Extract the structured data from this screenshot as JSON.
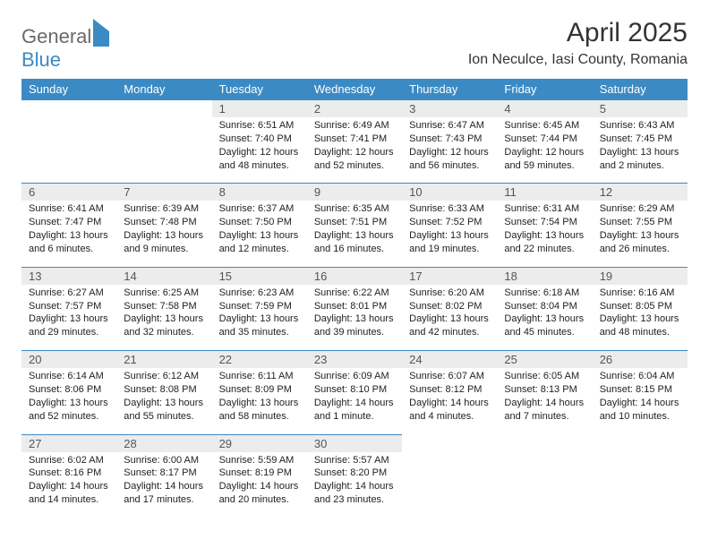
{
  "brand": {
    "word1": "General",
    "word2": "Blue"
  },
  "title": "April 2025",
  "location": "Ion Neculce, Iasi County, Romania",
  "header_bg": "#3b8ac4",
  "daynum_bg": "#ececec",
  "text_color": "#333333",
  "cell_fontsize": 11,
  "day_names": [
    "Sunday",
    "Monday",
    "Tuesday",
    "Wednesday",
    "Thursday",
    "Friday",
    "Saturday"
  ],
  "weeks": [
    [
      null,
      null,
      {
        "n": "1",
        "sr": "Sunrise: 6:51 AM",
        "ss": "Sunset: 7:40 PM",
        "dl": "Daylight: 12 hours and 48 minutes."
      },
      {
        "n": "2",
        "sr": "Sunrise: 6:49 AM",
        "ss": "Sunset: 7:41 PM",
        "dl": "Daylight: 12 hours and 52 minutes."
      },
      {
        "n": "3",
        "sr": "Sunrise: 6:47 AM",
        "ss": "Sunset: 7:43 PM",
        "dl": "Daylight: 12 hours and 56 minutes."
      },
      {
        "n": "4",
        "sr": "Sunrise: 6:45 AM",
        "ss": "Sunset: 7:44 PM",
        "dl": "Daylight: 12 hours and 59 minutes."
      },
      {
        "n": "5",
        "sr": "Sunrise: 6:43 AM",
        "ss": "Sunset: 7:45 PM",
        "dl": "Daylight: 13 hours and 2 minutes."
      }
    ],
    [
      {
        "n": "6",
        "sr": "Sunrise: 6:41 AM",
        "ss": "Sunset: 7:47 PM",
        "dl": "Daylight: 13 hours and 6 minutes."
      },
      {
        "n": "7",
        "sr": "Sunrise: 6:39 AM",
        "ss": "Sunset: 7:48 PM",
        "dl": "Daylight: 13 hours and 9 minutes."
      },
      {
        "n": "8",
        "sr": "Sunrise: 6:37 AM",
        "ss": "Sunset: 7:50 PM",
        "dl": "Daylight: 13 hours and 12 minutes."
      },
      {
        "n": "9",
        "sr": "Sunrise: 6:35 AM",
        "ss": "Sunset: 7:51 PM",
        "dl": "Daylight: 13 hours and 16 minutes."
      },
      {
        "n": "10",
        "sr": "Sunrise: 6:33 AM",
        "ss": "Sunset: 7:52 PM",
        "dl": "Daylight: 13 hours and 19 minutes."
      },
      {
        "n": "11",
        "sr": "Sunrise: 6:31 AM",
        "ss": "Sunset: 7:54 PM",
        "dl": "Daylight: 13 hours and 22 minutes."
      },
      {
        "n": "12",
        "sr": "Sunrise: 6:29 AM",
        "ss": "Sunset: 7:55 PM",
        "dl": "Daylight: 13 hours and 26 minutes."
      }
    ],
    [
      {
        "n": "13",
        "sr": "Sunrise: 6:27 AM",
        "ss": "Sunset: 7:57 PM",
        "dl": "Daylight: 13 hours and 29 minutes."
      },
      {
        "n": "14",
        "sr": "Sunrise: 6:25 AM",
        "ss": "Sunset: 7:58 PM",
        "dl": "Daylight: 13 hours and 32 minutes."
      },
      {
        "n": "15",
        "sr": "Sunrise: 6:23 AM",
        "ss": "Sunset: 7:59 PM",
        "dl": "Daylight: 13 hours and 35 minutes."
      },
      {
        "n": "16",
        "sr": "Sunrise: 6:22 AM",
        "ss": "Sunset: 8:01 PM",
        "dl": "Daylight: 13 hours and 39 minutes."
      },
      {
        "n": "17",
        "sr": "Sunrise: 6:20 AM",
        "ss": "Sunset: 8:02 PM",
        "dl": "Daylight: 13 hours and 42 minutes."
      },
      {
        "n": "18",
        "sr": "Sunrise: 6:18 AM",
        "ss": "Sunset: 8:04 PM",
        "dl": "Daylight: 13 hours and 45 minutes."
      },
      {
        "n": "19",
        "sr": "Sunrise: 6:16 AM",
        "ss": "Sunset: 8:05 PM",
        "dl": "Daylight: 13 hours and 48 minutes."
      }
    ],
    [
      {
        "n": "20",
        "sr": "Sunrise: 6:14 AM",
        "ss": "Sunset: 8:06 PM",
        "dl": "Daylight: 13 hours and 52 minutes."
      },
      {
        "n": "21",
        "sr": "Sunrise: 6:12 AM",
        "ss": "Sunset: 8:08 PM",
        "dl": "Daylight: 13 hours and 55 minutes."
      },
      {
        "n": "22",
        "sr": "Sunrise: 6:11 AM",
        "ss": "Sunset: 8:09 PM",
        "dl": "Daylight: 13 hours and 58 minutes."
      },
      {
        "n": "23",
        "sr": "Sunrise: 6:09 AM",
        "ss": "Sunset: 8:10 PM",
        "dl": "Daylight: 14 hours and 1 minute."
      },
      {
        "n": "24",
        "sr": "Sunrise: 6:07 AM",
        "ss": "Sunset: 8:12 PM",
        "dl": "Daylight: 14 hours and 4 minutes."
      },
      {
        "n": "25",
        "sr": "Sunrise: 6:05 AM",
        "ss": "Sunset: 8:13 PM",
        "dl": "Daylight: 14 hours and 7 minutes."
      },
      {
        "n": "26",
        "sr": "Sunrise: 6:04 AM",
        "ss": "Sunset: 8:15 PM",
        "dl": "Daylight: 14 hours and 10 minutes."
      }
    ],
    [
      {
        "n": "27",
        "sr": "Sunrise: 6:02 AM",
        "ss": "Sunset: 8:16 PM",
        "dl": "Daylight: 14 hours and 14 minutes."
      },
      {
        "n": "28",
        "sr": "Sunrise: 6:00 AM",
        "ss": "Sunset: 8:17 PM",
        "dl": "Daylight: 14 hours and 17 minutes."
      },
      {
        "n": "29",
        "sr": "Sunrise: 5:59 AM",
        "ss": "Sunset: 8:19 PM",
        "dl": "Daylight: 14 hours and 20 minutes."
      },
      {
        "n": "30",
        "sr": "Sunrise: 5:57 AM",
        "ss": "Sunset: 8:20 PM",
        "dl": "Daylight: 14 hours and 23 minutes."
      },
      null,
      null,
      null
    ]
  ]
}
